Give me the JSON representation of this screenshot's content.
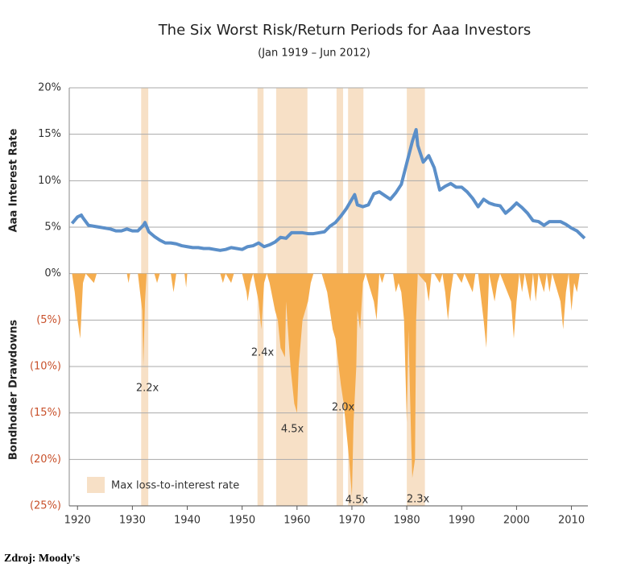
{
  "chart_data": {
    "type": "line",
    "title": "The Six Worst Risk/Return Periods for Aaa Investors",
    "subtitle": "(Jan 1919 – Jun 2012)",
    "ylabels": [
      "Aaa Interest Rate",
      "Bondholder Drawdowns"
    ],
    "source": "Zdroj: Moody's",
    "xlim": [
      1918.5,
      2013
    ],
    "xticks": [
      1920,
      1930,
      1940,
      1950,
      1960,
      1970,
      1980,
      1990,
      2000,
      2010
    ],
    "ylim": [
      -25,
      20
    ],
    "yticks": [
      {
        "value": 20,
        "label": "20%"
      },
      {
        "value": 15,
        "label": "15%"
      },
      {
        "value": 10,
        "label": "10%"
      },
      {
        "value": 5,
        "label": "5%"
      },
      {
        "value": 0,
        "label": "0%"
      },
      {
        "value": -5,
        "label": "(5%)"
      },
      {
        "value": -10,
        "label": "(10%)"
      },
      {
        "value": -15,
        "label": "(15%)"
      },
      {
        "value": -20,
        "label": "(20%)"
      },
      {
        "value": -25,
        "label": "(25%)"
      }
    ],
    "grid": true,
    "shaded_periods": {
      "name": "Max loss-to-interest rate",
      "color": "#f7e0c6",
      "ranges": [
        [
          1931.6,
          1932.9
        ],
        [
          1952.8,
          1953.9
        ],
        [
          1956.2,
          1961.9
        ],
        [
          1967.2,
          1968.4
        ],
        [
          1969.3,
          1972.1
        ],
        [
          1980.0,
          1983.3
        ]
      ]
    },
    "annotations": [
      "2.2x",
      "2.4x",
      "4.5x",
      "2.0x",
      "4.5x",
      "2.3x"
    ],
    "series": [
      {
        "color": "#5b8fc9",
        "x": [
          1919,
          1920,
          1920.7,
          1921,
          1922,
          1923,
          1924,
          1925,
          1926,
          1927,
          1928,
          1929,
          1930,
          1931,
          1932,
          1932.3,
          1933,
          1934,
          1935,
          1936,
          1937,
          1938,
          1939,
          1940,
          1941,
          1942,
          1943,
          1944,
          1945,
          1946,
          1947,
          1948,
          1949,
          1950,
          1951,
          1952,
          1953,
          1954,
          1955,
          1956,
          1957,
          1958,
          1959,
          1960,
          1961,
          1962,
          1963,
          1964,
          1965,
          1966,
          1967,
          1968,
          1969,
          1970,
          1970.5,
          1971,
          1972,
          1973,
          1974,
          1975,
          1976,
          1977,
          1978,
          1979,
          1980,
          1981,
          1981.7,
          1982,
          1983,
          1984,
          1985,
          1986,
          1987,
          1988,
          1989,
          1990,
          1991,
          1992,
          1993,
          1994,
          1995,
          1996,
          1997,
          1998,
          1999,
          2000,
          2001,
          2002,
          2003,
          2004,
          2005,
          2006,
          2007,
          2008,
          2009,
          2010,
          2011,
          2012.4
        ],
        "values": [
          5.4,
          6.1,
          6.3,
          6.0,
          5.2,
          5.1,
          5.0,
          4.9,
          4.8,
          4.6,
          4.6,
          4.8,
          4.6,
          4.6,
          5.2,
          5.5,
          4.5,
          4.0,
          3.6,
          3.3,
          3.3,
          3.2,
          3.0,
          2.9,
          2.8,
          2.8,
          2.7,
          2.7,
          2.6,
          2.5,
          2.6,
          2.8,
          2.7,
          2.6,
          2.9,
          3.0,
          3.3,
          2.9,
          3.1,
          3.4,
          3.9,
          3.8,
          4.4,
          4.4,
          4.4,
          4.3,
          4.3,
          4.4,
          4.5,
          5.1,
          5.5,
          6.2,
          7.0,
          8.0,
          8.5,
          7.4,
          7.2,
          7.4,
          8.6,
          8.8,
          8.4,
          8.0,
          8.7,
          9.6,
          11.9,
          14.2,
          15.5,
          13.8,
          12.0,
          12.7,
          11.4,
          9.0,
          9.4,
          9.7,
          9.3,
          9.3,
          8.8,
          8.1,
          7.2,
          8.0,
          7.6,
          7.4,
          7.3,
          6.5,
          7.0,
          7.6,
          7.1,
          6.5,
          5.7,
          5.6,
          5.2,
          5.6,
          5.6,
          5.6,
          5.3,
          4.9,
          4.6,
          3.8
        ]
      },
      {
        "color": "#f5ad4e",
        "x": [
          1919,
          1919.5,
          1920,
          1920.5,
          1921,
          1921.5,
          1923,
          1923.5,
          1929,
          1929.3,
          1929.6,
          1931,
          1931.8,
          1932,
          1932.3,
          1932.6,
          1934,
          1934.5,
          1935,
          1937,
          1937.5,
          1938,
          1939.5,
          1939.8,
          1940,
          1946,
          1946.5,
          1947,
          1948,
          1948.5,
          1950,
          1950.8,
          1951,
          1951.5,
          1952,
          1953,
          1953.5,
          1954,
          1954.5,
          1955,
          1956,
          1956.5,
          1957,
          1957.8,
          1958,
          1958.8,
          1959.5,
          1960,
          1960.3,
          1961,
          1962,
          1962.5,
          1963,
          1964.5,
          1965.5,
          1966,
          1966.5,
          1967,
          1968,
          1968.5,
          1969,
          1969.5,
          1970,
          1970.3,
          1970.8,
          1971,
          1971.5,
          1972,
          1972.5,
          1973,
          1974,
          1974.5,
          1975,
          1975.5,
          1976,
          1977.5,
          1978,
          1978.5,
          1979,
          1979.5,
          1980,
          1980.3,
          1980.8,
          1981,
          1981.5,
          1981.7,
          1982,
          1983.5,
          1984,
          1984.5,
          1985,
          1986,
          1986.5,
          1987,
          1987.5,
          1988,
          1988.5,
          1989,
          1990,
          1990.5,
          1992,
          1992.5,
          1993,
          1994,
          1994.5,
          1995,
          1996,
          1996.5,
          1997,
          1999,
          1999.5,
          2000,
          2000.5,
          2001,
          2001.5,
          2002.5,
          2003,
          2003.5,
          2004,
          2005,
          2005.5,
          2006,
          2006.5,
          2008,
          2008.5,
          2009,
          2009.5,
          2010,
          2010.5,
          2011,
          2011.5,
          2012.4
        ],
        "values": [
          0,
          -2,
          -5,
          -7,
          -1,
          0,
          -1,
          0,
          0,
          -1,
          0,
          0,
          -4,
          -10,
          -3,
          0,
          0,
          -1,
          0,
          0,
          -2,
          0,
          0,
          -1.5,
          0,
          0,
          -1,
          0,
          -1,
          0,
          0,
          -2,
          -3,
          -1,
          0,
          -3,
          -6,
          -1,
          0,
          -1,
          -4,
          -5,
          -8,
          -9,
          -3,
          -10,
          -14,
          -15,
          -10,
          -5,
          -3,
          -1,
          0,
          0,
          -2,
          -4,
          -6,
          -7,
          -12,
          -14,
          -17,
          -20,
          -24,
          -16,
          -10,
          -4,
          -6,
          -1,
          0,
          -1,
          -3,
          -5,
          0,
          -1,
          0,
          0,
          -2,
          -1,
          -2,
          -5,
          -16,
          -6,
          -18,
          -22,
          -20,
          -5,
          0,
          -1,
          -3,
          0,
          0,
          -1,
          0,
          -2,
          -5,
          -2,
          0,
          0,
          -1,
          0,
          -2,
          0,
          0,
          -5,
          -8,
          0,
          -3,
          -1,
          0,
          -3,
          -7,
          -3,
          0,
          -2,
          0,
          -3,
          0,
          -3,
          0,
          -2,
          0,
          -2,
          0,
          -3,
          -6,
          -2,
          0,
          -4,
          -1,
          -2,
          0,
          0
        ]
      }
    ]
  }
}
